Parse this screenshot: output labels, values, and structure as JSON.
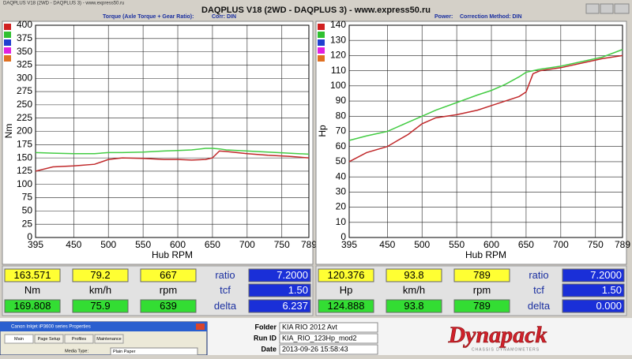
{
  "taskbar_title": "DAQPLUS V18 (2WD - DAQPLUS 3) - www.express50.ru",
  "window_title": "DAQPLUS V18 (2WD - DAQPLUS 3) - www.express50.ru",
  "header": {
    "torque_label": "Torque (Axle Torque + Gear Ratio):",
    "torque_corr": "Corr: DIN",
    "power_label": "Power:",
    "power_corr": "Correction Method: DIN"
  },
  "chart_data": [
    {
      "type": "line",
      "x_label": "Hub RPM",
      "y_label": "Nm",
      "x": [
        395,
        420,
        450,
        480,
        500,
        520,
        550,
        580,
        600,
        620,
        640,
        650,
        660,
        670,
        700,
        730,
        760,
        789
      ],
      "series": [
        {
          "color": "#c0282a",
          "values": [
            125,
            133,
            135,
            138,
            147,
            150,
            149,
            147,
            147,
            146,
            147,
            150,
            163,
            162,
            158,
            155,
            153,
            150
          ]
        },
        {
          "color": "#44cc44",
          "values": [
            160,
            159,
            158,
            158,
            160,
            160,
            161,
            163,
            164,
            165,
            168,
            168,
            167,
            165,
            163,
            161,
            159,
            157
          ]
        }
      ],
      "xlim": [
        395,
        789
      ],
      "ylim": [
        0,
        400
      ],
      "xticks": [
        395,
        450,
        500,
        550,
        600,
        650,
        700,
        750,
        789
      ],
      "yticks": [
        0,
        25,
        50,
        75,
        100,
        125,
        150,
        175,
        200,
        225,
        250,
        275,
        300,
        325,
        350,
        375,
        400
      ],
      "grid": true
    },
    {
      "type": "line",
      "x_label": "Hub RPM",
      "y_label": "Hp",
      "x": [
        395,
        420,
        450,
        480,
        500,
        520,
        550,
        580,
        600,
        620,
        640,
        650,
        660,
        670,
        700,
        730,
        760,
        789
      ],
      "series": [
        {
          "color": "#c0282a",
          "values": [
            50,
            56,
            60,
            68,
            75,
            79,
            81,
            84,
            87,
            90,
            93,
            96,
            108,
            110,
            112,
            115,
            118,
            120
          ]
        },
        {
          "color": "#44cc44",
          "values": [
            64,
            67,
            70,
            76,
            80,
            84,
            89,
            94,
            97,
            101,
            106,
            109,
            110,
            111,
            113,
            116,
            119,
            124
          ]
        }
      ],
      "xlim": [
        395,
        789
      ],
      "ylim": [
        0,
        140
      ],
      "xticks": [
        395,
        450,
        500,
        550,
        600,
        650,
        700,
        750,
        789
      ],
      "yticks": [
        0,
        10,
        20,
        30,
        40,
        50,
        60,
        70,
        80,
        90,
        100,
        110,
        120,
        130,
        140
      ],
      "grid": true
    }
  ],
  "panels": [
    {
      "rows": [
        [
          "163.571",
          "79.2",
          "667",
          "ratio",
          "7.2000"
        ],
        [
          "Nm",
          "km/h",
          "rpm",
          "tcf",
          "1.50"
        ],
        [
          "169.808",
          "75.9",
          "639",
          "delta",
          "6.237"
        ]
      ]
    },
    {
      "rows": [
        [
          "120.376",
          "93.8",
          "789",
          "ratio",
          "7.2000"
        ],
        [
          "Hp",
          "km/h",
          "rpm",
          "tcf",
          "1.50"
        ],
        [
          "124.888",
          "93.8",
          "789",
          "delta",
          "0.000"
        ]
      ]
    }
  ],
  "footer": {
    "folder_label": "Folder",
    "folder": "KIA RIO 2012 Avt",
    "run_label": "Run ID",
    "run": "KIA_RIO_123Hp_mod2",
    "date_label": "Date",
    "date": "2013-09-26 15:58:43",
    "logo": "Dynapack",
    "logo_sub": "CHASSIS DYNAMOMETERS"
  },
  "print_dialog": {
    "title": "Canon Inkjet iP3600 series Properties",
    "tabs": [
      "Main",
      "Page Setup",
      "Profiles",
      "Maintenance"
    ],
    "media_label": "Media Type:",
    "media": "Plain Paper"
  }
}
